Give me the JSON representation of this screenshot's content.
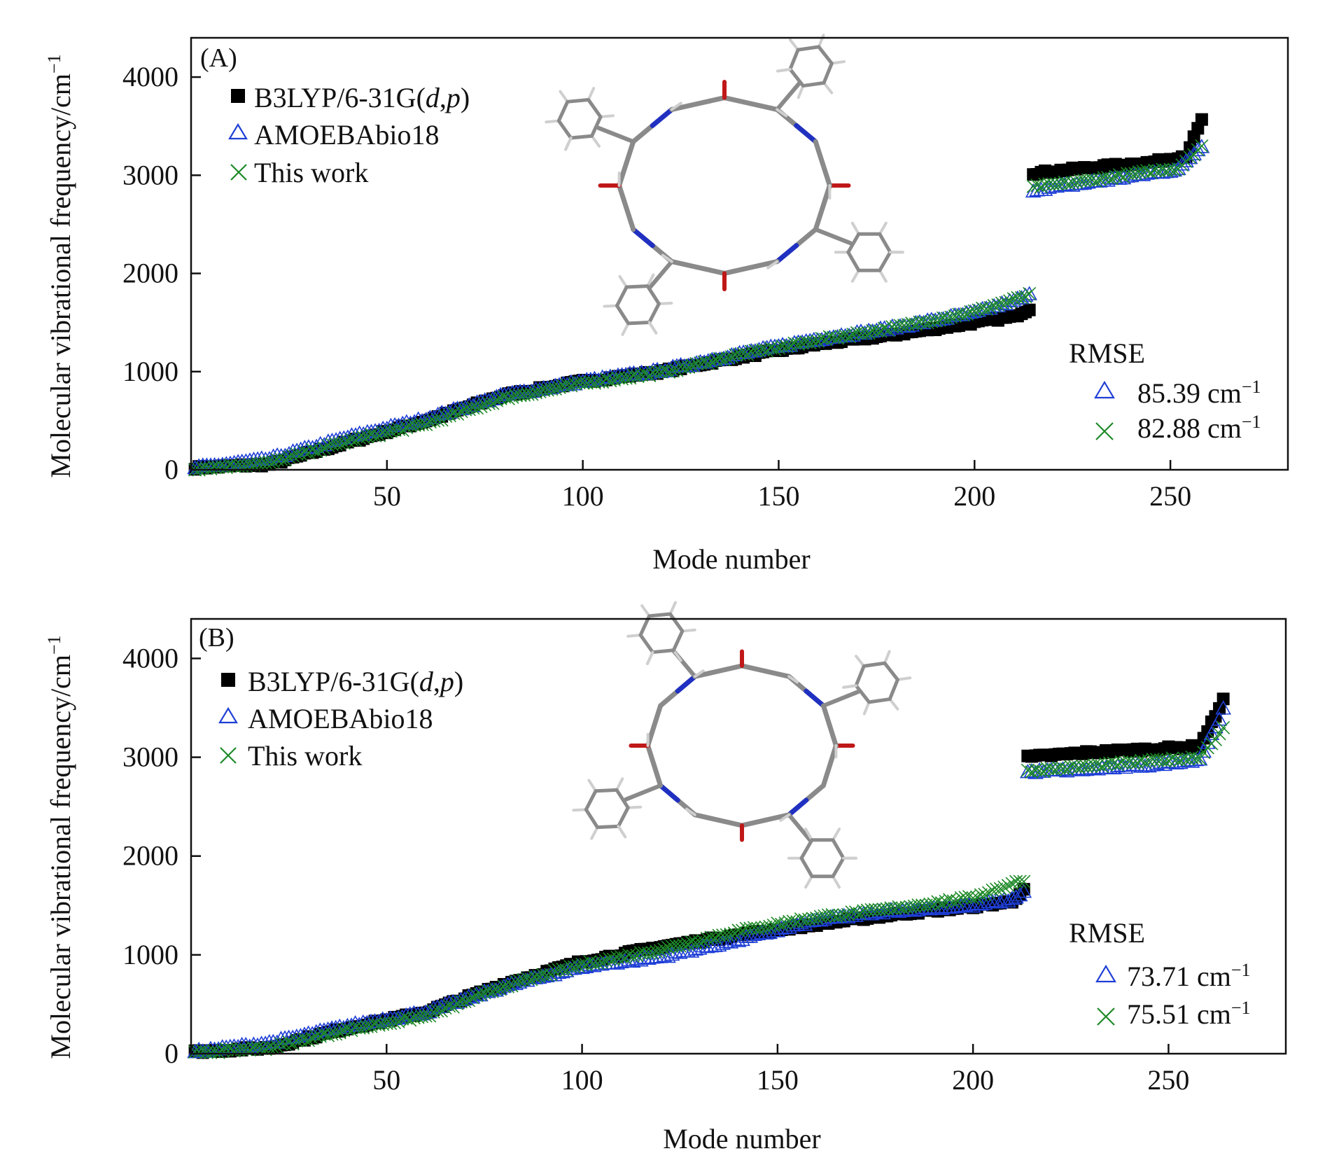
{
  "colors": {
    "ref": "#000000",
    "amoeba": "#1f3fd6",
    "thiswork": "#1e8a28",
    "axis": "#111111",
    "mol_c": "#8a8a8a",
    "mol_h": "#cfcfcf",
    "mol_n": "#2030c0",
    "mol_o": "#c01818"
  },
  "chart_data": [
    {
      "type": "scatter",
      "panel_label": "(A)",
      "xlabel": "Mode number",
      "ylabel": "Molecular vibrational frequency/cm",
      "ylabel_sup": "−1",
      "xlim": [
        0,
        280
      ],
      "ylim": [
        0,
        4400
      ],
      "xticks": [
        50,
        100,
        150,
        200,
        250
      ],
      "yticks": [
        0,
        1000,
        2000,
        3000,
        4000
      ],
      "n_modes": 258,
      "legend": {
        "position": "top-left",
        "entries": [
          {
            "key": "ref",
            "marker": "square",
            "name_prefix": "B3LYP/6-31G(",
            "name_d": "d",
            "name_comma": ",",
            "name_p": "p",
            "name_suffix": ")"
          },
          {
            "key": "amoeba",
            "marker": "triangle",
            "name": "AMOEBAbio18"
          },
          {
            "key": "thiswork",
            "marker": "cross",
            "name": "This work"
          }
        ]
      },
      "rmse": {
        "title": "RMSE",
        "unit": "cm",
        "unit_sup": "−1",
        "values": [
          {
            "key": "amoeba",
            "marker": "triangle",
            "value": "85.39"
          },
          {
            "key": "thiswork",
            "marker": "cross",
            "value": "82.88"
          }
        ]
      },
      "series": [
        {
          "key": "ref",
          "name": "B3LYP/6-31G(d,p)",
          "low_knots": [
            [
              1,
              20
            ],
            [
              20,
              55
            ],
            [
              40,
              280
            ],
            [
              60,
              500
            ],
            [
              80,
              760
            ],
            [
              100,
              900
            ],
            [
              120,
              1000
            ],
            [
              140,
              1150
            ],
            [
              160,
              1280
            ],
            [
              180,
              1380
            ],
            [
              200,
              1500
            ],
            [
              210,
              1560
            ],
            [
              218,
              1720
            ]
          ],
          "high_knots": [
            [
              215,
              3020
            ],
            [
              230,
              3080
            ],
            [
              245,
              3130
            ],
            [
              254,
              3200
            ],
            [
              258,
              3560
            ]
          ]
        },
        {
          "key": "amoeba",
          "name": "AMOEBAbio18",
          "low_knots": [
            [
              1,
              20
            ],
            [
              20,
              110
            ],
            [
              40,
              330
            ],
            [
              60,
              520
            ],
            [
              80,
              760
            ],
            [
              100,
              900
            ],
            [
              120,
              1010
            ],
            [
              140,
              1180
            ],
            [
              160,
              1330
            ],
            [
              180,
              1450
            ],
            [
              200,
              1600
            ],
            [
              210,
              1720
            ],
            [
              218,
              1840
            ]
          ],
          "high_knots": [
            [
              215,
              2850
            ],
            [
              230,
              2930
            ],
            [
              245,
              3020
            ],
            [
              252,
              3060
            ],
            [
              258,
              3300
            ]
          ]
        },
        {
          "key": "thiswork",
          "name": "This work",
          "low_knots": [
            [
              1,
              10
            ],
            [
              20,
              70
            ],
            [
              40,
              290
            ],
            [
              60,
              470
            ],
            [
              80,
              730
            ],
            [
              100,
              880
            ],
            [
              120,
              990
            ],
            [
              140,
              1170
            ],
            [
              160,
              1320
            ],
            [
              180,
              1450
            ],
            [
              200,
              1610
            ],
            [
              210,
              1730
            ],
            [
              218,
              1830
            ]
          ],
          "high_knots": [
            [
              215,
              2880
            ],
            [
              230,
              2950
            ],
            [
              245,
              3040
            ],
            [
              252,
              3070
            ],
            [
              258,
              3300
            ]
          ]
        }
      ]
    },
    {
      "type": "scatter",
      "panel_label": "(B)",
      "xlabel": "Mode number",
      "ylabel": "Molecular vibrational frequency/cm",
      "ylabel_sup": "−1",
      "xlim": [
        0,
        280
      ],
      "ylim": [
        0,
        4400
      ],
      "xticks": [
        50,
        100,
        150,
        200,
        250
      ],
      "yticks": [
        0,
        1000,
        2000,
        3000,
        4000
      ],
      "n_modes": 264,
      "legend": {
        "position": "top-left",
        "entries": [
          {
            "key": "ref",
            "marker": "square",
            "name_prefix": "B3LYP/6-31G(",
            "name_d": "d",
            "name_comma": ",",
            "name_p": "p",
            "name_suffix": ")"
          },
          {
            "key": "amoeba",
            "marker": "triangle",
            "name": "AMOEBAbio18"
          },
          {
            "key": "thiswork",
            "marker": "cross",
            "name": "This work"
          }
        ]
      },
      "rmse": {
        "title": "RMSE",
        "unit": "cm",
        "unit_sup": "−1",
        "values": [
          {
            "key": "amoeba",
            "marker": "triangle",
            "value": "73.71"
          },
          {
            "key": "thiswork",
            "marker": "cross",
            "value": "75.51"
          }
        ]
      },
      "series": [
        {
          "key": "ref",
          "name": "B3LYP/6-31G(d,p)",
          "low_knots": [
            [
              1,
              20
            ],
            [
              20,
              60
            ],
            [
              40,
              260
            ],
            [
              60,
              420
            ],
            [
              80,
              700
            ],
            [
              100,
              930
            ],
            [
              120,
              1080
            ],
            [
              140,
              1200
            ],
            [
              160,
              1310
            ],
            [
              180,
              1410
            ],
            [
              200,
              1490
            ],
            [
              210,
              1540
            ],
            [
              215,
              1750
            ]
          ],
          "high_knots": [
            [
              214,
              3000
            ],
            [
              230,
              3050
            ],
            [
              245,
              3080
            ],
            [
              258,
              3110
            ],
            [
              264,
              3580
            ]
          ]
        },
        {
          "key": "amoeba",
          "name": "AMOEBAbio18",
          "low_knots": [
            [
              1,
              20
            ],
            [
              20,
              110
            ],
            [
              40,
              280
            ],
            [
              60,
              420
            ],
            [
              80,
              680
            ],
            [
              100,
              880
            ],
            [
              120,
              980
            ],
            [
              140,
              1150
            ],
            [
              160,
              1350
            ],
            [
              180,
              1450
            ],
            [
              200,
              1500
            ],
            [
              210,
              1560
            ],
            [
              215,
              1690
            ]
          ],
          "high_knots": [
            [
              214,
              2850
            ],
            [
              230,
              2880
            ],
            [
              245,
              2920
            ],
            [
              258,
              2980
            ],
            [
              264,
              3480
            ]
          ]
        },
        {
          "key": "thiswork",
          "name": "This work",
          "low_knots": [
            [
              1,
              10
            ],
            [
              20,
              60
            ],
            [
              40,
              240
            ],
            [
              60,
              380
            ],
            [
              80,
              680
            ],
            [
              100,
              900
            ],
            [
              120,
              1050
            ],
            [
              140,
              1240
            ],
            [
              160,
              1380
            ],
            [
              180,
              1470
            ],
            [
              200,
              1580
            ],
            [
              210,
              1720
            ],
            [
              215,
              1780
            ]
          ],
          "high_knots": [
            [
              214,
              2860
            ],
            [
              230,
              2910
            ],
            [
              245,
              2960
            ],
            [
              258,
              3000
            ],
            [
              264,
              3290
            ]
          ]
        }
      ]
    }
  ]
}
